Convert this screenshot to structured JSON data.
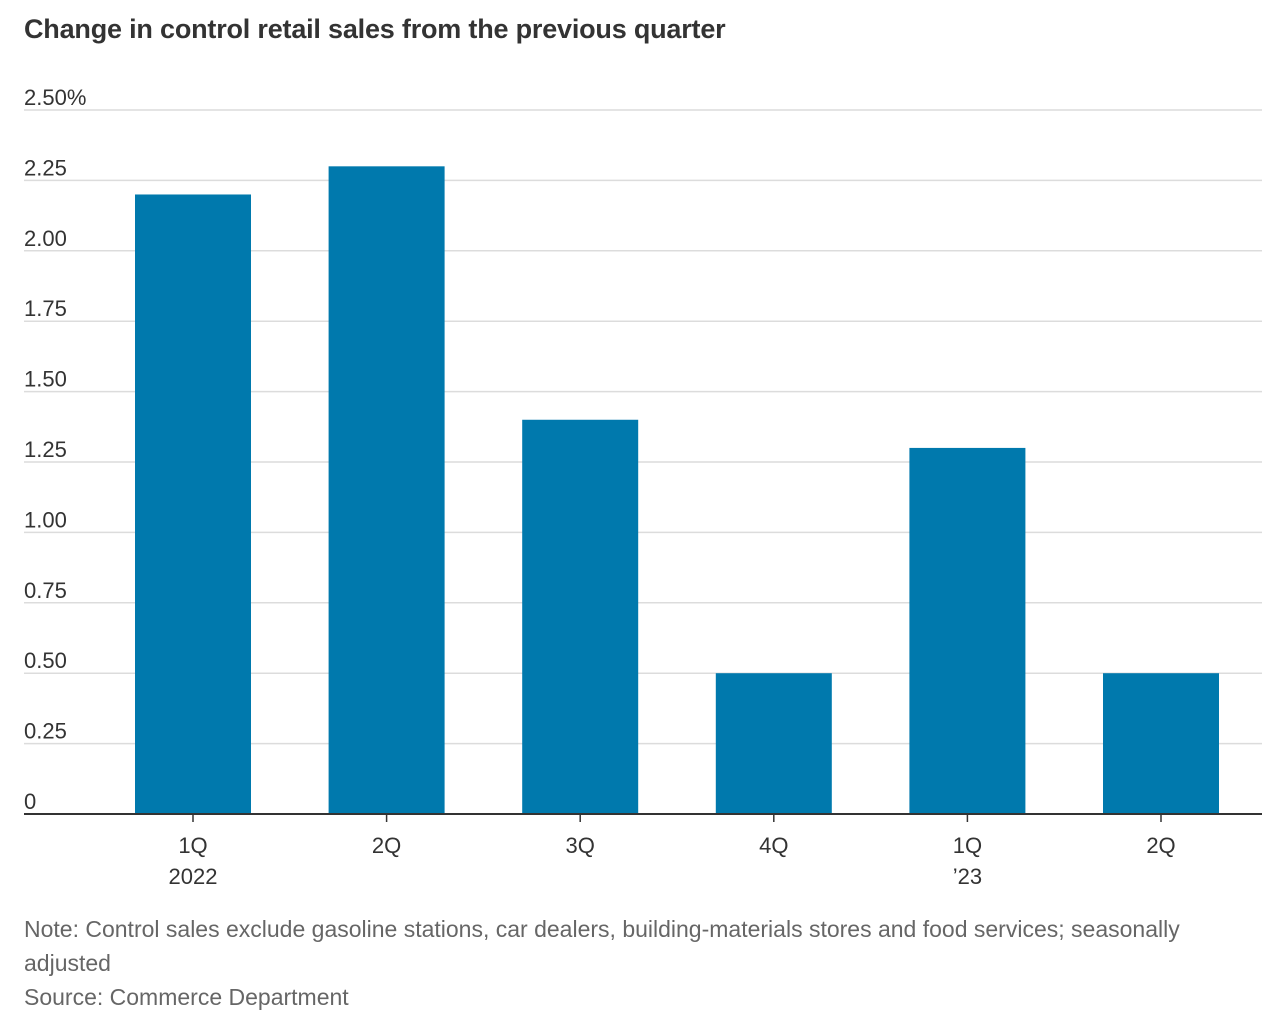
{
  "title": "Change in control retail sales from the previous quarter",
  "footer": {
    "note": "Note: Control sales exclude gasoline stations, car dealers, building-materials stores and food services; seasonally adjusted",
    "source": "Source: Commerce Department"
  },
  "colors": {
    "bar": "#0079ad",
    "grid": "#dcdcdc",
    "axis": "#333333"
  },
  "chart_data": {
    "type": "bar",
    "title": "Change in control retail sales from the previous quarter",
    "xlabel": "",
    "ylabel": "",
    "categories": [
      "1Q 2022",
      "2Q",
      "3Q",
      "4Q",
      "1Q ’23",
      "2Q"
    ],
    "category_labels": [
      [
        "1Q",
        "2022"
      ],
      [
        "2Q"
      ],
      [
        "3Q"
      ],
      [
        "4Q"
      ],
      [
        "1Q",
        "’23"
      ],
      [
        "2Q"
      ]
    ],
    "values": [
      2.2,
      2.3,
      1.4,
      0.5,
      1.3,
      0.5
    ],
    "ylim": [
      0,
      2.5
    ],
    "y_ticks": [
      0,
      0.25,
      0.5,
      0.75,
      1.0,
      1.25,
      1.5,
      1.75,
      2.0,
      2.25,
      2.5
    ],
    "y_tick_labels": [
      "0",
      "0.25",
      "0.50",
      "0.75",
      "1.00",
      "1.25",
      "1.50",
      "1.75",
      "2.00",
      "2.25",
      "2.50%"
    ],
    "grid": true,
    "legend": "none"
  }
}
